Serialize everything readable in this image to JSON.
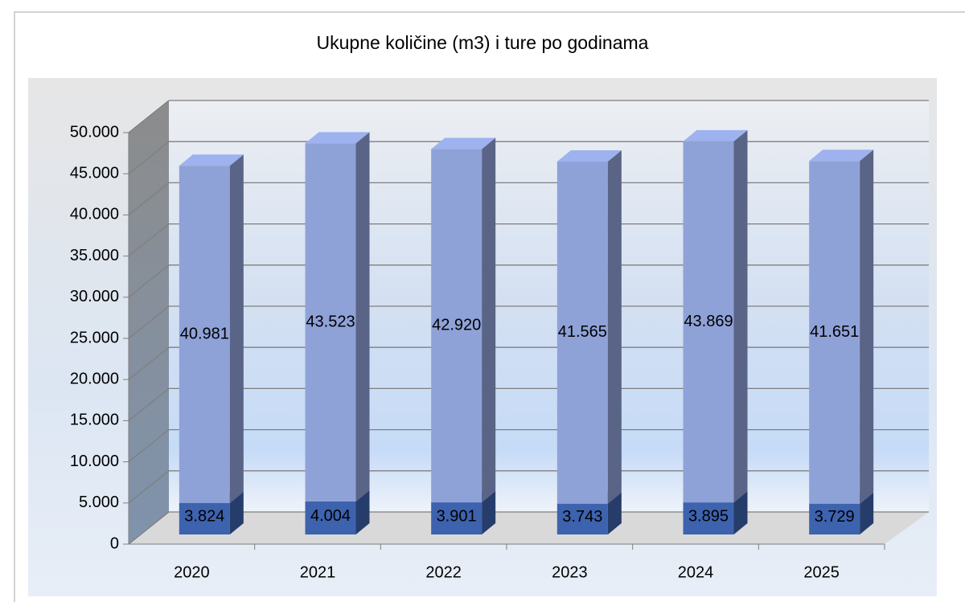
{
  "chart_data": {
    "type": "bar",
    "stacked": true,
    "title": "Ukupne količine (m3) i ture po godinama",
    "categories": [
      "2020",
      "2021",
      "2022",
      "2023",
      "2024",
      "2025"
    ],
    "series": [
      {
        "color": "#3d62ae",
        "values": [
          3824,
          4004,
          3901,
          3743,
          3895,
          3729
        ],
        "value_labels": [
          "3.824",
          "4.004",
          "3.901",
          "3.743",
          "3.895",
          "3.729"
        ]
      },
      {
        "color": "#8fa2d8",
        "values": [
          40981,
          43523,
          42920,
          41565,
          43869,
          41651
        ],
        "value_labels": [
          "40.981",
          "43.523",
          "42.920",
          "41.565",
          "43.869",
          "41.651"
        ]
      }
    ],
    "ylim": [
      0,
      50000
    ],
    "yticks": [
      0,
      {
        "value": 5000,
        "label": "5.000"
      },
      {
        "value": 10000,
        "label": "10.000"
      },
      {
        "value": 15000,
        "label": "15.000"
      },
      {
        "value": 20000,
        "label": "20.000"
      },
      {
        "value": 25000,
        "label": "25.000"
      },
      {
        "value": 30000,
        "label": "30.000"
      },
      {
        "value": 35000,
        "label": "35.000"
      },
      {
        "value": 40000,
        "label": "40.000"
      },
      {
        "value": 45000,
        "label": "45.000"
      },
      {
        "value": 50000,
        "label": "50.000"
      }
    ],
    "grid": true
  }
}
